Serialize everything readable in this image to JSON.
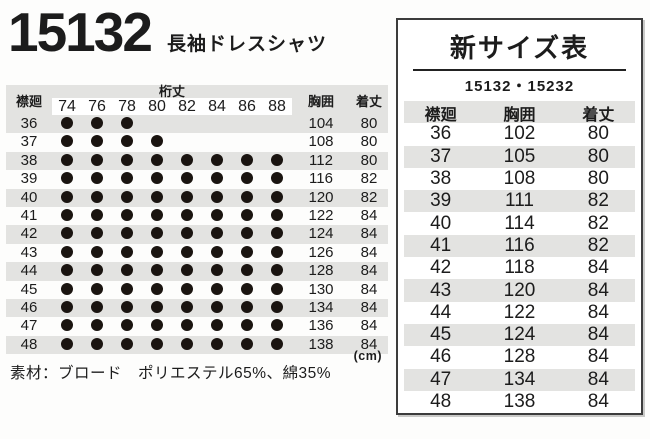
{
  "page": {
    "product_code": "15132",
    "product_name": "長袖ドレスシャツ",
    "unit_note": "(cm)",
    "material_note": "素材：ブロード　ポリエステル65%、綿35%"
  },
  "colors": {
    "row_shade": "#e3e3e1",
    "text": "#1c1c1c",
    "panel_border": "#3c3c3c"
  },
  "size_matrix": {
    "collar_header": "襟廻",
    "sleeve_header": "桁丈",
    "chest_header": "胸囲",
    "length_header": "着丈",
    "sleeve_lengths": [
      74,
      76,
      78,
      80,
      82,
      84,
      86,
      88
    ],
    "rows": [
      {
        "collar": 36,
        "available": [
          74,
          76,
          78
        ],
        "chest": 104,
        "length": 80
      },
      {
        "collar": 37,
        "available": [
          74,
          76,
          78,
          80
        ],
        "chest": 108,
        "length": 80
      },
      {
        "collar": 38,
        "available": [
          74,
          76,
          78,
          80,
          82,
          84,
          86,
          88
        ],
        "chest": 112,
        "length": 80
      },
      {
        "collar": 39,
        "available": [
          74,
          76,
          78,
          80,
          82,
          84,
          86,
          88
        ],
        "chest": 116,
        "length": 82
      },
      {
        "collar": 40,
        "available": [
          74,
          76,
          78,
          80,
          82,
          84,
          86,
          88
        ],
        "chest": 120,
        "length": 82
      },
      {
        "collar": 41,
        "available": [
          74,
          76,
          78,
          80,
          82,
          84,
          86,
          88
        ],
        "chest": 122,
        "length": 84
      },
      {
        "collar": 42,
        "available": [
          74,
          76,
          78,
          80,
          82,
          84,
          86,
          88
        ],
        "chest": 124,
        "length": 84
      },
      {
        "collar": 43,
        "available": [
          74,
          76,
          78,
          80,
          82,
          84,
          86,
          88
        ],
        "chest": 126,
        "length": 84
      },
      {
        "collar": 44,
        "available": [
          74,
          76,
          78,
          80,
          82,
          84,
          86,
          88
        ],
        "chest": 128,
        "length": 84
      },
      {
        "collar": 45,
        "available": [
          74,
          76,
          78,
          80,
          82,
          84,
          86,
          88
        ],
        "chest": 130,
        "length": 84
      },
      {
        "collar": 46,
        "available": [
          74,
          76,
          78,
          80,
          82,
          84,
          86,
          88
        ],
        "chest": 134,
        "length": 84
      },
      {
        "collar": 47,
        "available": [
          74,
          76,
          78,
          80,
          82,
          84,
          86,
          88
        ],
        "chest": 136,
        "length": 84
      },
      {
        "collar": 48,
        "available": [
          74,
          76,
          78,
          80,
          82,
          84,
          86,
          88
        ],
        "chest": 138,
        "length": 84
      }
    ]
  },
  "new_size_table": {
    "title": "新サイズ表",
    "product_codes": "15132・15232",
    "columns": [
      "襟廻",
      "胸囲",
      "着丈"
    ],
    "rows": [
      [
        36,
        102,
        80
      ],
      [
        37,
        105,
        80
      ],
      [
        38,
        108,
        80
      ],
      [
        39,
        111,
        82
      ],
      [
        40,
        114,
        82
      ],
      [
        41,
        116,
        82
      ],
      [
        42,
        118,
        84
      ],
      [
        43,
        120,
        84
      ],
      [
        44,
        122,
        84
      ],
      [
        45,
        124,
        84
      ],
      [
        46,
        128,
        84
      ],
      [
        47,
        134,
        84
      ],
      [
        48,
        138,
        84
      ]
    ]
  }
}
